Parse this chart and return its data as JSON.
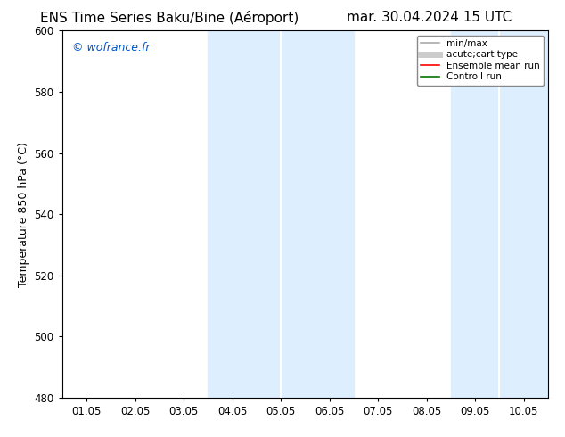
{
  "title_left": "ENS Time Series Baku/Bine (Aéroport)",
  "title_right": "mar. 30.04.2024 15 UTC",
  "ylabel": "Temperature 850 hPa (°C)",
  "watermark": "© wofrance.fr",
  "watermark_color": "#0055cc",
  "x_tick_labels": [
    "01.05",
    "02.05",
    "03.05",
    "04.05",
    "05.05",
    "06.05",
    "07.05",
    "08.05",
    "09.05",
    "10.05"
  ],
  "x_tick_positions": [
    1,
    2,
    3,
    4,
    5,
    6,
    7,
    8,
    9,
    10
  ],
  "ylim": [
    480,
    600
  ],
  "xlim": [
    0.5,
    10.5
  ],
  "yticks": [
    480,
    500,
    520,
    540,
    560,
    580,
    600
  ],
  "shaded_regions": [
    {
      "xmin": 3.5,
      "xmax": 6.5,
      "color": "#ddeeff"
    },
    {
      "xmin": 8.5,
      "xmax": 10.5,
      "color": "#ddeeff"
    }
  ],
  "divider_lines": [
    5.0,
    9.5
  ],
  "divider_color": "#ffffff",
  "legend_entries": [
    {
      "label": "min/max",
      "color": "#aaaaaa",
      "linestyle": "-",
      "linewidth": 1.2
    },
    {
      "label": "acute;cart type",
      "color": "#cccccc",
      "linestyle": "-",
      "linewidth": 5
    },
    {
      "label": "Ensemble mean run",
      "color": "#ff0000",
      "linestyle": "-",
      "linewidth": 1.2
    },
    {
      "label": "Controll run",
      "color": "#007700",
      "linestyle": "-",
      "linewidth": 1.2
    }
  ],
  "background_color": "#ffffff",
  "plot_bg_color": "#ffffff",
  "spine_color": "#000000",
  "tick_color": "#000000",
  "title_fontsize": 11,
  "label_fontsize": 9,
  "tick_fontsize": 8.5
}
